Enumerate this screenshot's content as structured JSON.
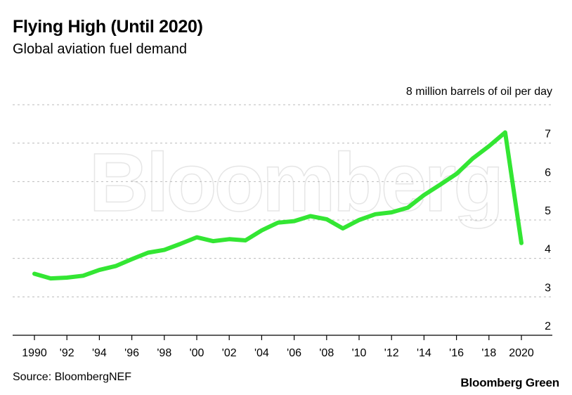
{
  "header": {
    "title": "Flying High (Until 2020)",
    "subtitle": "Global aviation fuel demand"
  },
  "footer": {
    "source": "Source: BloombergNEF",
    "brand": "Bloomberg Green"
  },
  "watermark": "Bloomberg",
  "colors": {
    "line": "#33e633",
    "grid": "#bbbbbb",
    "axis": "#000000"
  },
  "chart_data": {
    "type": "line",
    "title": "Flying High (Until 2020)",
    "subtitle": "Global aviation fuel demand",
    "xlabel": "",
    "ylabel": "million barrels of oil per day",
    "unit_label": "8 million barrels of oil per day",
    "xlim": [
      1989,
      2021
    ],
    "ylim": [
      2,
      8
    ],
    "grid": true,
    "x_ticks": [
      {
        "value": 1990,
        "label": "1990"
      },
      {
        "value": 1992,
        "label": "'92"
      },
      {
        "value": 1994,
        "label": "'94"
      },
      {
        "value": 1996,
        "label": "'96"
      },
      {
        "value": 1998,
        "label": "'98"
      },
      {
        "value": 2000,
        "label": "'00"
      },
      {
        "value": 2002,
        "label": "'02"
      },
      {
        "value": 2004,
        "label": "'04"
      },
      {
        "value": 2006,
        "label": "'06"
      },
      {
        "value": 2008,
        "label": "'08"
      },
      {
        "value": 2010,
        "label": "'10"
      },
      {
        "value": 2012,
        "label": "'12"
      },
      {
        "value": 2014,
        "label": "'14"
      },
      {
        "value": 2016,
        "label": "'16"
      },
      {
        "value": 2018,
        "label": "'18"
      },
      {
        "value": 2020,
        "label": "2020"
      }
    ],
    "y_ticks": [
      {
        "value": 2,
        "label": "2"
      },
      {
        "value": 3,
        "label": "3"
      },
      {
        "value": 4,
        "label": "4"
      },
      {
        "value": 5,
        "label": "5"
      },
      {
        "value": 6,
        "label": "6"
      },
      {
        "value": 7,
        "label": "7"
      }
    ],
    "series": [
      {
        "name": "Global aviation fuel demand",
        "x": [
          1990,
          1991,
          1992,
          1993,
          1994,
          1995,
          1996,
          1997,
          1998,
          1999,
          2000,
          2001,
          2002,
          2003,
          2004,
          2005,
          2006,
          2007,
          2008,
          2009,
          2010,
          2011,
          2012,
          2013,
          2014,
          2015,
          2016,
          2017,
          2018,
          2019,
          2020
        ],
        "values": [
          3.6,
          3.48,
          3.5,
          3.55,
          3.7,
          3.8,
          3.98,
          4.15,
          4.22,
          4.38,
          4.55,
          4.45,
          4.5,
          4.47,
          4.73,
          4.93,
          4.97,
          5.1,
          5.02,
          4.78,
          5.0,
          5.15,
          5.2,
          5.32,
          5.65,
          5.92,
          6.2,
          6.6,
          6.92,
          7.28,
          4.4
        ]
      }
    ]
  }
}
